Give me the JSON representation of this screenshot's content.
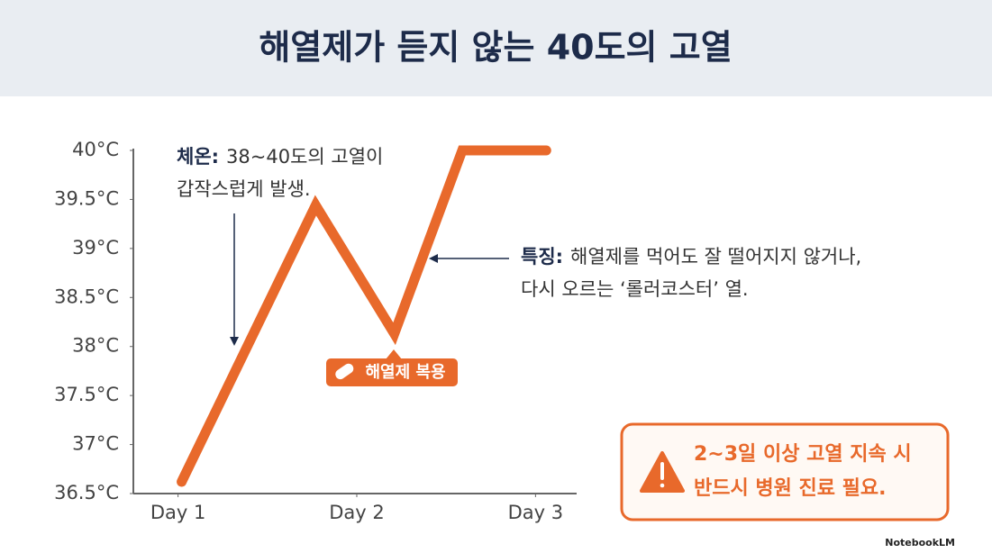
{
  "chart_data": {
    "type": "line",
    "title": "해열제가 듣지 않는 40도의 고열",
    "x": [
      1.02,
      1.77,
      2.21,
      2.59,
      3.06
    ],
    "values": [
      36.62,
      39.44,
      38.13,
      40,
      40
    ],
    "color": "#e8692b",
    "xlim": [
      0.75,
      3.23
    ],
    "xticks": [
      {
        "value": 1,
        "label": "Day 1"
      },
      {
        "value": 2,
        "label": "Day 2"
      },
      {
        "value": 3,
        "label": "Day 3"
      }
    ],
    "ylim": [
      36.5,
      40
    ],
    "yticks": [
      {
        "value": 36.5,
        "label": "36.5°C"
      },
      {
        "value": 37,
        "label": "37°C"
      },
      {
        "value": 37.5,
        "label": "37.5°C"
      },
      {
        "value": 38,
        "label": "38°C"
      },
      {
        "value": 38.5,
        "label": "38.5°C"
      },
      {
        "value": 39,
        "label": "39°C"
      },
      {
        "value": 39.5,
        "label": "39.5°C"
      },
      {
        "value": 40,
        "label": "40°C"
      }
    ],
    "annotations": [
      {
        "label": "체온:",
        "lines": [
          "38~40도의 고열이",
          "갑작스럽게 발생."
        ]
      },
      {
        "label": "특징:",
        "lines": [
          "해열제를 먹어도 잘 떨어지지 않거나,",
          "다시 오르는 ‘롤러코스터’ 열."
        ]
      }
    ],
    "callout": "해열제 복용",
    "warning": [
      "2~3일 이상 고열 지속 시",
      "반드시 병원 진료 필요."
    ]
  },
  "footer": "NotebookLM"
}
